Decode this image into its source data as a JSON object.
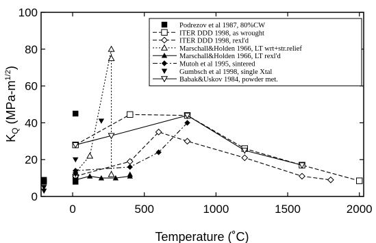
{
  "chart_data": {
    "type": "scatter",
    "title": "",
    "xlabel": "Temperature (˚C)",
    "ylabel_main": "K",
    "ylabel_sub": "Q",
    "ylabel_units": " (MPa-m",
    "ylabel_sup": "1/2",
    "ylabel_close": ")",
    "xlim": [
      -220,
      2030
    ],
    "ylim": [
      0,
      100
    ],
    "xticks": [
      0,
      500,
      1000,
      1500,
      2000
    ],
    "yticks": [
      0,
      20,
      40,
      60,
      80,
      100
    ],
    "xtick_labels": [
      "0",
      "500",
      "1000",
      "1500",
      "2000"
    ],
    "ytick_labels": [
      "0",
      "20",
      "40",
      "60",
      "80",
      "100"
    ],
    "grid": false,
    "legend_position": "top-right",
    "series": [
      {
        "name": "Podrezov et al 1987, 80%CW",
        "marker": "square-filled",
        "line": "none",
        "points": [
          [
            -200,
            8
          ],
          [
            -200,
            9
          ],
          [
            20,
            45
          ],
          [
            20,
            10
          ],
          [
            20,
            8
          ]
        ]
      },
      {
        "name": "ITER DDD 1998, as wrought",
        "marker": "square-open",
        "line": "dashed",
        "points": [
          [
            20,
            28
          ],
          [
            400,
            44.5
          ],
          [
            800,
            44
          ],
          [
            1200,
            26
          ],
          [
            1600,
            17
          ],
          [
            2000,
            8.5
          ]
        ]
      },
      {
        "name": "ITER DDD 1998, rexl'd",
        "marker": "diamond-open",
        "line": "dashed",
        "points": [
          [
            20,
            11
          ],
          [
            400,
            19
          ],
          [
            600,
            35
          ],
          [
            800,
            30
          ],
          [
            1200,
            21
          ],
          [
            1600,
            11
          ],
          [
            1800,
            9
          ]
        ]
      },
      {
        "name": "Marschall&Holden 1966, LT wrt+str.relief",
        "marker": "triangle-up-open",
        "line": "dotted",
        "points": [
          [
            20,
            13
          ],
          [
            120,
            22
          ],
          [
            270,
            80
          ],
          [
            270,
            75
          ],
          [
            270,
            12
          ]
        ]
      },
      {
        "name": "Marschall&Holden 1966, LT rexl'd",
        "marker": "triangle-up-filled",
        "line": "solid",
        "points": [
          [
            20,
            9
          ],
          [
            120,
            11
          ],
          [
            200,
            10
          ],
          [
            300,
            10
          ],
          [
            400,
            11
          ],
          [
            400,
            12
          ]
        ]
      },
      {
        "name": "Mutoh et al 1995, sintered",
        "marker": "diamond-filled",
        "line": "dash-dot",
        "points": [
          [
            20,
            14
          ],
          [
            400,
            16
          ],
          [
            600,
            24
          ],
          [
            800,
            40
          ]
        ]
      },
      {
        "name": "Gumbsch et al 1998, single Xtal",
        "marker": "triangle-down-filled",
        "line": "none",
        "points": [
          [
            -200,
            5
          ],
          [
            -200,
            3
          ],
          [
            20,
            20
          ],
          [
            20,
            12
          ],
          [
            200,
            41
          ]
        ]
      },
      {
        "name": "Babak&Uskov 1984, powder met.",
        "marker": "triangle-down-open",
        "line": "solid",
        "points": [
          [
            20,
            28
          ],
          [
            270,
            33
          ],
          [
            800,
            44
          ],
          [
            1200,
            25
          ],
          [
            1600,
            17
          ]
        ]
      }
    ]
  }
}
